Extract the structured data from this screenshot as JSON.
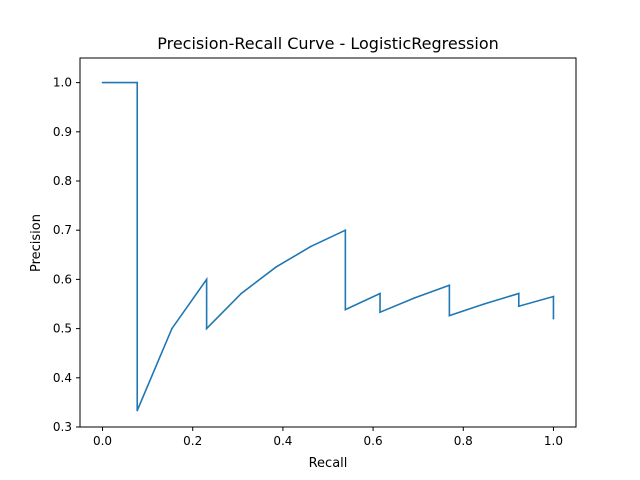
{
  "chart_data": {
    "type": "line",
    "title": "Precision-Recall Curve - LogisticRegression",
    "xlabel": "Recall",
    "ylabel": "Precision",
    "xlim": [
      -0.05,
      1.05
    ],
    "ylim": [
      0.3,
      1.05
    ],
    "x_ticks": [
      0.0,
      0.2,
      0.4,
      0.6,
      0.8,
      1.0
    ],
    "x_tick_labels": [
      "0.0",
      "0.2",
      "0.4",
      "0.6",
      "0.8",
      "1.0"
    ],
    "y_ticks": [
      0.3,
      0.4,
      0.5,
      0.6,
      0.7,
      0.8,
      0.9,
      1.0
    ],
    "y_tick_labels": [
      "0.3",
      "0.4",
      "0.5",
      "0.6",
      "0.7",
      "0.8",
      "0.9",
      "1.0"
    ],
    "grid": false,
    "series": [
      {
        "color": "#1f77b4",
        "x": [
          0.0,
          0.0769,
          0.0769,
          0.1538,
          0.2308,
          0.2308,
          0.3077,
          0.3846,
          0.4615,
          0.5385,
          0.5385,
          0.6154,
          0.6154,
          0.6923,
          0.7692,
          0.7692,
          0.8462,
          0.9231,
          0.9231,
          1.0,
          1.0
        ],
        "y": [
          1.0,
          1.0,
          0.3333,
          0.5,
          0.6,
          0.5,
          0.5714,
          0.625,
          0.6667,
          0.7,
          0.5385,
          0.5714,
          0.5333,
          0.5625,
          0.5882,
          0.5263,
          0.55,
          0.5714,
          0.5455,
          0.5652,
          0.52
        ]
      }
    ]
  }
}
